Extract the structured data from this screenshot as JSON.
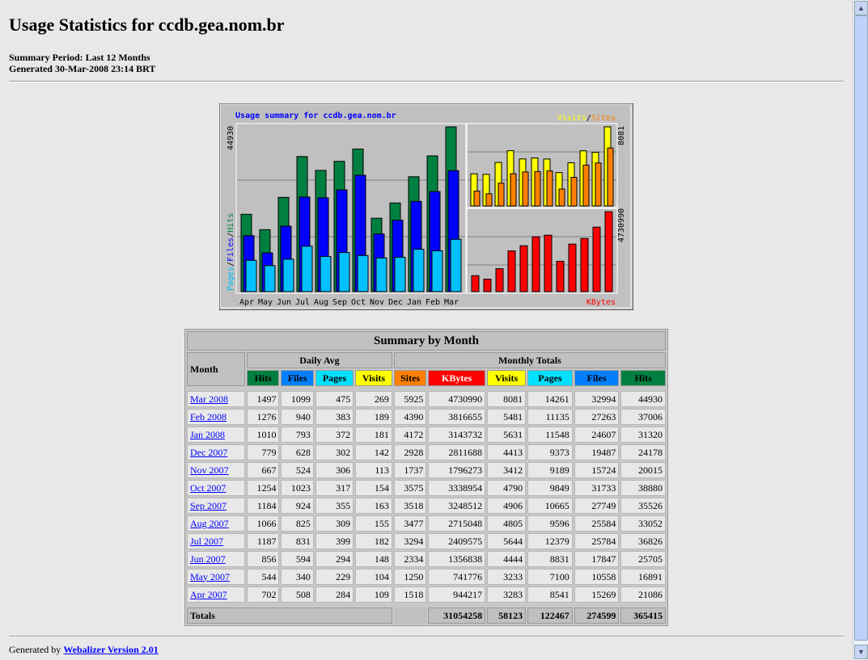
{
  "header": {
    "title": "Usage Statistics for ccdb.gea.nom.br",
    "period": "Summary Period: Last 12 Months",
    "generated": "Generated 30-Mar-2008 23:14 BRT"
  },
  "chart_data": {
    "type": "bar",
    "title": "Usage summary for ccdb.gea.nom.br",
    "categories": [
      "Apr",
      "May",
      "Jun",
      "Jul",
      "Aug",
      "Sep",
      "Oct",
      "Nov",
      "Dec",
      "Jan",
      "Feb",
      "Mar"
    ],
    "main": {
      "label_pages": "Pages",
      "label_files": "Files",
      "label_hits": "Hits",
      "sep": "/",
      "max_label": "44930",
      "ymax": 44930,
      "hits": [
        21086,
        16891,
        25705,
        36826,
        33052,
        35526,
        38880,
        20015,
        24178,
        31320,
        37006,
        44930
      ],
      "files": [
        15269,
        10558,
        17847,
        25784,
        25584,
        27749,
        31733,
        15724,
        19487,
        24607,
        27263,
        32994
      ],
      "pages": [
        8541,
        7100,
        8831,
        12379,
        9596,
        10665,
        9849,
        9189,
        9373,
        11548,
        11135,
        14261
      ]
    },
    "visits_sites": {
      "label_visits": "Visits",
      "label_sites": "Sites",
      "sep": "/",
      "max_label": "8081",
      "ymax": 8081,
      "visits": [
        3283,
        3233,
        4444,
        5644,
        4805,
        4906,
        4790,
        3412,
        4413,
        5631,
        5481,
        8081
      ],
      "sites": [
        1518,
        1250,
        2334,
        3294,
        3477,
        3518,
        3575,
        1737,
        2928,
        4172,
        4390,
        5925
      ]
    },
    "kbytes": {
      "label": "KBytes",
      "max_label": "4730990",
      "ymax": 4730990,
      "values": [
        944217,
        741776,
        1356838,
        2409575,
        2715048,
        3248512,
        3338954,
        1796273,
        2811688,
        3143732,
        3816655,
        4730990
      ]
    },
    "colors": {
      "hits": "#008040",
      "files": "#0000ff",
      "pages": "#00c0ff",
      "visits": "#ffff00",
      "sites": "#ff8000",
      "kbytes": "#ff0000"
    }
  },
  "table": {
    "title": "Summary by Month",
    "month": "Month",
    "daily_avg": "Daily Avg",
    "monthly_totals": "Monthly Totals",
    "cols": [
      "Hits",
      "Files",
      "Pages",
      "Visits",
      "Sites",
      "KBytes",
      "Visits",
      "Pages",
      "Files",
      "Hits"
    ],
    "rows": [
      [
        "Mar 2008",
        "1497",
        "1099",
        "475",
        "269",
        "5925",
        "4730990",
        "8081",
        "14261",
        "32994",
        "44930"
      ],
      [
        "Feb 2008",
        "1276",
        "940",
        "383",
        "189",
        "4390",
        "3816655",
        "5481",
        "11135",
        "27263",
        "37006"
      ],
      [
        "Jan 2008",
        "1010",
        "793",
        "372",
        "181",
        "4172",
        "3143732",
        "5631",
        "11548",
        "24607",
        "31320"
      ],
      [
        "Dec 2007",
        "779",
        "628",
        "302",
        "142",
        "2928",
        "2811688",
        "4413",
        "9373",
        "19487",
        "24178"
      ],
      [
        "Nov 2007",
        "667",
        "524",
        "306",
        "113",
        "1737",
        "1796273",
        "3412",
        "9189",
        "15724",
        "20015"
      ],
      [
        "Oct 2007",
        "1254",
        "1023",
        "317",
        "154",
        "3575",
        "3338954",
        "4790",
        "9849",
        "31733",
        "38880"
      ],
      [
        "Sep 2007",
        "1184",
        "924",
        "355",
        "163",
        "3518",
        "3248512",
        "4906",
        "10665",
        "27749",
        "35526"
      ],
      [
        "Aug 2007",
        "1066",
        "825",
        "309",
        "155",
        "3477",
        "2715048",
        "4805",
        "9596",
        "25584",
        "33052"
      ],
      [
        "Jul 2007",
        "1187",
        "831",
        "399",
        "182",
        "3294",
        "2409575",
        "5644",
        "12379",
        "25784",
        "36826"
      ],
      [
        "Jun 2007",
        "856",
        "594",
        "294",
        "148",
        "2334",
        "1356838",
        "4444",
        "8831",
        "17847",
        "25705"
      ],
      [
        "May 2007",
        "544",
        "340",
        "229",
        "104",
        "1250",
        "741776",
        "3233",
        "7100",
        "10558",
        "16891"
      ],
      [
        "Apr 2007",
        "702",
        "508",
        "284",
        "109",
        "1518",
        "944217",
        "3283",
        "8541",
        "15269",
        "21086"
      ]
    ],
    "totals_label": "Totals",
    "totals": [
      "31054258",
      "58123",
      "122467",
      "274599",
      "365415"
    ],
    "header_colors": [
      "#008040",
      "#0080ff",
      "#00e0ff",
      "#ffff00",
      "#ff8000",
      "#ff0000",
      "#ffff00",
      "#00e0ff",
      "#0080ff",
      "#008040"
    ]
  },
  "footer": {
    "prefix": "Generated by ",
    "link": "Webalizer Version 2.01"
  }
}
